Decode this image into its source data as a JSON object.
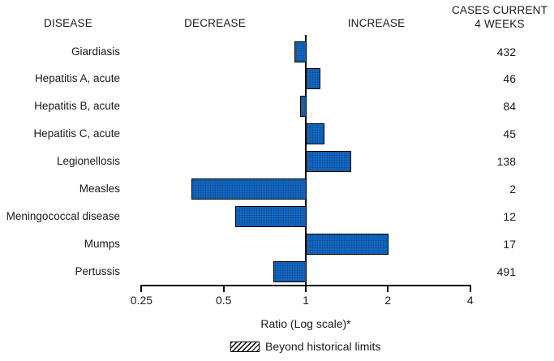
{
  "header": {
    "disease": "DISEASE",
    "decrease": "DECREASE",
    "increase": "INCREASE",
    "cases_line1": "CASES CURRENT",
    "cases_line2": "4 WEEKS"
  },
  "chart_data": {
    "type": "bar",
    "orientation": "horizontal",
    "scale": "log2",
    "baseline_ratio": 1,
    "xlabel": "Ratio (Log scale)*",
    "axis_ticks": [
      {
        "value": 0.25,
        "label": "0.25"
      },
      {
        "value": 0.5,
        "label": "0.5"
      },
      {
        "value": 1,
        "label": "1"
      },
      {
        "value": 2,
        "label": "2"
      },
      {
        "value": 4,
        "label": "4"
      }
    ],
    "axis_range": [
      0.25,
      4
    ],
    "legend": [
      {
        "label": "Beyond historical limits",
        "style": "hatched"
      }
    ],
    "rows": [
      {
        "disease": "Giardiasis",
        "ratio": 0.91,
        "cases": "432",
        "beyond_limits": false
      },
      {
        "disease": "Hepatitis A, acute",
        "ratio": 1.12,
        "cases": "46",
        "beyond_limits": false
      },
      {
        "disease": "Hepatitis B, acute",
        "ratio": 0.95,
        "cases": "84",
        "beyond_limits": false
      },
      {
        "disease": "Hepatitis C, acute",
        "ratio": 1.16,
        "cases": "45",
        "beyond_limits": false
      },
      {
        "disease": "Legionellosis",
        "ratio": 1.46,
        "cases": "138",
        "beyond_limits": false
      },
      {
        "disease": "Measles",
        "ratio": 0.38,
        "cases": "2",
        "beyond_limits": false
      },
      {
        "disease": "Meningococcal disease",
        "ratio": 0.55,
        "cases": "12",
        "beyond_limits": false
      },
      {
        "disease": "Mumps",
        "ratio": 2.0,
        "cases": "17",
        "beyond_limits": false
      },
      {
        "disease": "Pertussis",
        "ratio": 0.76,
        "cases": "491",
        "beyond_limits": false
      }
    ]
  },
  "colors": {
    "bar_fill": "#146dc9",
    "bar_border": "#000000",
    "axis": "#000000",
    "text": "#1a1a1a",
    "background": "#ffffff"
  }
}
